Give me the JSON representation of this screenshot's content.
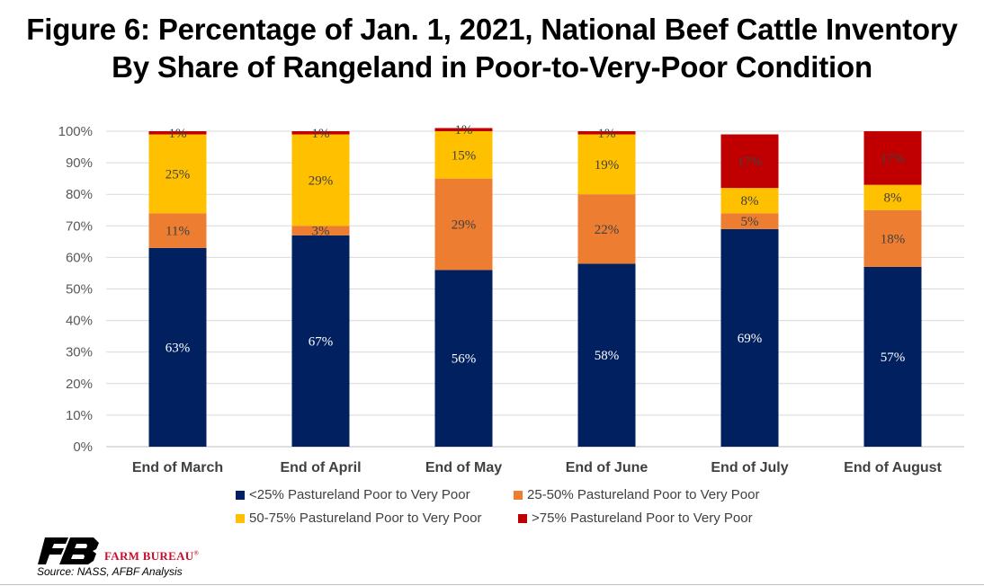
{
  "title_line1": "Figure 6: Percentage of Jan. 1, 2021, National Beef Cattle Inventory",
  "title_line2": "By Share of Rangeland in Poor-to-Very-Poor Condition",
  "chart_data": {
    "type": "bar",
    "stacked": true,
    "categories": [
      "End of March",
      "End of April",
      "End of May",
      "End of June",
      "End of July",
      "End of August"
    ],
    "series": [
      {
        "name": "<25% Pastureland Poor to Very Poor",
        "color": "#002060",
        "label_color": "#ffffff",
        "values": [
          63,
          67,
          56,
          58,
          69,
          57
        ],
        "labels": [
          "63%",
          "67%",
          "56%",
          "58%",
          "69%",
          "57%"
        ]
      },
      {
        "name": "25-50% Pastureland Poor to Very Poor",
        "color": "#ED7D31",
        "label_color": "#404040",
        "values": [
          11,
          3,
          29,
          22,
          5,
          18
        ],
        "labels": [
          "11%",
          "3%",
          "29%",
          "22%",
          "5%",
          "18%"
        ]
      },
      {
        "name": "50-75% Pastureland Poor to Very Poor",
        "color": "#FFC000",
        "label_color": "#404040",
        "values": [
          25,
          29,
          15,
          19,
          8,
          8
        ],
        "labels": [
          "25%",
          "29%",
          "15%",
          "19%",
          "8%",
          "8%"
        ]
      },
      {
        "name": ">75% Pastureland Poor to Very Poor",
        "color": "#C00000",
        "label_color": "#404040",
        "values": [
          1,
          1,
          1,
          1,
          17,
          17
        ],
        "labels": [
          "1%",
          "1%",
          "1%",
          "1%",
          "17%",
          "17%"
        ]
      }
    ],
    "y_ticks": [
      "0%",
      "10%",
      "20%",
      "30%",
      "40%",
      "50%",
      "60%",
      "70%",
      "80%",
      "90%",
      "100%"
    ],
    "ylim": [
      0,
      100
    ],
    "grid": true,
    "legend_position": "bottom"
  },
  "brand": {
    "name": "FARM BUREAU",
    "mark": "®"
  },
  "source": "Source: NASS, AFBF Analysis"
}
